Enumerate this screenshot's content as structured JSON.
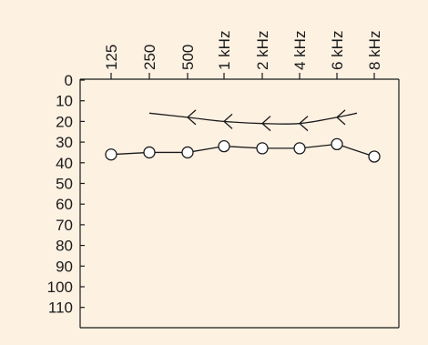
{
  "chart_data": {
    "type": "line",
    "background_color": "#fdf1e2",
    "line_color": "#1a1a1a",
    "x_categories": [
      "125",
      "250",
      "500",
      "1 kHz",
      "2 kHz",
      "4 kHz",
      "6 kHz",
      "8 kHz"
    ],
    "y_ticks": [
      "0",
      "10",
      "20",
      "30",
      "40",
      "50",
      "60",
      "70",
      "80",
      "90",
      "100",
      "110"
    ],
    "ylim": [
      0,
      120
    ],
    "y_inverted": true,
    "xaxis_position": "top",
    "grid": false,
    "series": [
      {
        "marker": "circle-open",
        "points": [
          {
            "x": "125",
            "y": 36
          },
          {
            "x": "250",
            "y": 35
          },
          {
            "x": "500",
            "y": 35
          },
          {
            "x": "1 kHz",
            "y": 32
          },
          {
            "x": "2 kHz",
            "y": 33
          },
          {
            "x": "4 kHz",
            "y": 33
          },
          {
            "x": "6 kHz",
            "y": 31
          },
          {
            "x": "8 kHz",
            "y": 37
          }
        ]
      },
      {
        "marker": "arrow-left",
        "curve": [
          {
            "x": 250,
            "y": 16
          },
          {
            "x": 500,
            "y": 18
          },
          {
            "x": 1000,
            "y": 20
          },
          {
            "x": 2000,
            "y": 21
          },
          {
            "x": 4000,
            "y": 21
          },
          {
            "x": 6000,
            "y": 18
          },
          {
            "x": 7000,
            "y": 16
          }
        ],
        "arrows_at": [
          {
            "x": "500",
            "y": 18
          },
          {
            "x": "1 kHz",
            "y": 20
          },
          {
            "x": "2 kHz",
            "y": 21
          },
          {
            "x": "4 kHz",
            "y": 21
          },
          {
            "x": "6 kHz",
            "y": 18
          }
        ]
      }
    ]
  }
}
